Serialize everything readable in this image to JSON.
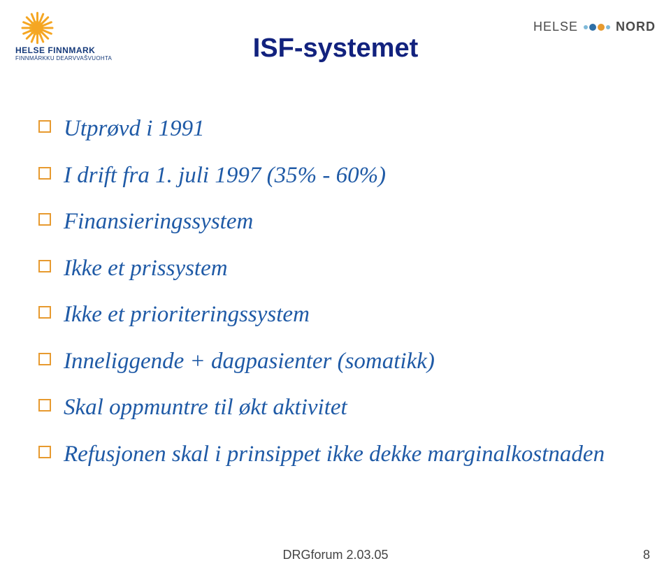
{
  "header": {
    "left_logo": {
      "name": "HELSE FINNMARK",
      "subtitle": "FINNMÁRKKU DEARVVAŠVUOHTA",
      "sun_color_ray": "#f5a623",
      "sun_color_core": "#f5c542",
      "text_color": "#163a7a"
    },
    "right_logo": {
      "text_helse": "HELSE",
      "text_nord": "NORD",
      "dot_colors": [
        "#7fb9d8",
        "#2e6fa7",
        "#e79a2f",
        "#7fb9d8"
      ],
      "text_color": "#4a4a4a"
    }
  },
  "title": {
    "text": "ISF-systemet",
    "color": "#12227e",
    "fontsize": 38
  },
  "bullets": {
    "marker_border_color": "#e79a2f",
    "text_color": "#1f5aa6",
    "fontsize": 33,
    "items": [
      "Utprøvd i 1991",
      "I drift fra 1. juli 1997 (35% - 60%)",
      "Finansieringssystem",
      "Ikke et prissystem",
      "Ikke et prioriteringssystem",
      "Inneliggende + dagpasienter (somatikk)",
      "Skal oppmuntre til økt aktivitet",
      "Refusjonen skal i prinsippet ikke dekke marginalkostnaden"
    ]
  },
  "footer": {
    "center": "DRGforum 2.03.05",
    "page_number": "8",
    "color": "#444444"
  },
  "background_color": "#ffffff"
}
